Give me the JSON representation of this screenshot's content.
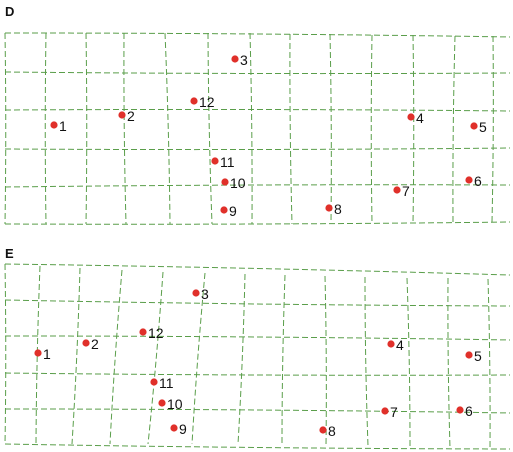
{
  "panels": [
    {
      "label": "D",
      "markers": [
        "1",
        "2",
        "3",
        "4",
        "5",
        "6",
        "7",
        "8",
        "9",
        "10",
        "11",
        "12"
      ]
    },
    {
      "label": "E",
      "markers": [
        "1",
        "2",
        "3",
        "4",
        "5",
        "6",
        "7",
        "8",
        "9",
        "10",
        "11",
        "12"
      ]
    }
  ],
  "colors": {
    "grid": "#5a9e4a",
    "marker": "#e0302a"
  }
}
